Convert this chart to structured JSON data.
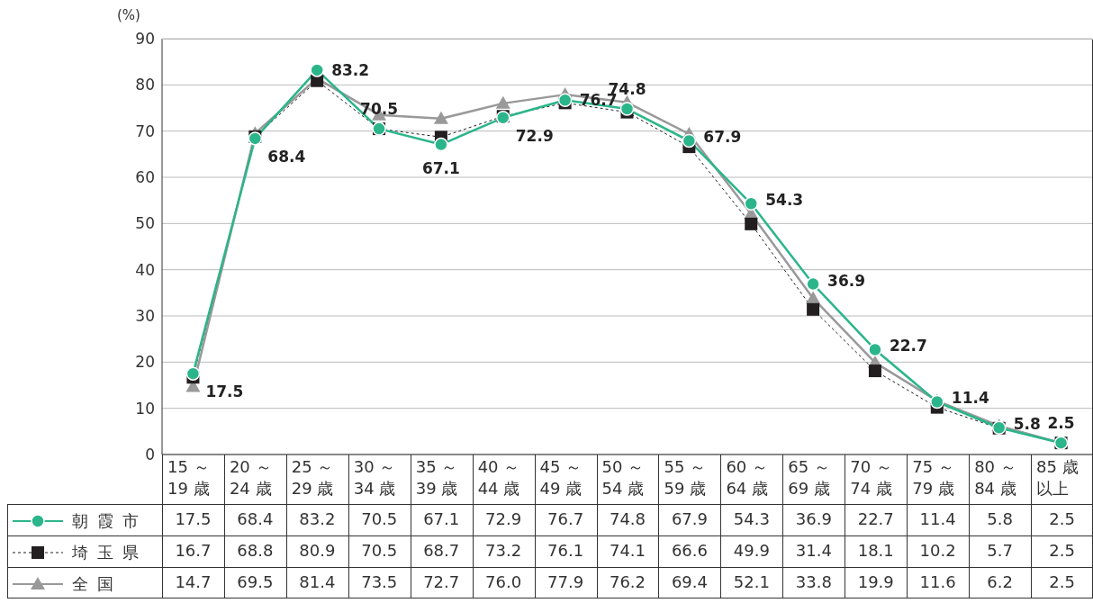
{
  "chart_data": {
    "type": "line",
    "ylabel": "(%)",
    "categories": [
      "15 ～\n19 歳",
      "20 ～\n24 歳",
      "25 ～\n29 歳",
      "30 ～\n34 歳",
      "35 ～\n39 歳",
      "40 ～\n44 歳",
      "45 ～\n49 歳",
      "50 ～\n54 歳",
      "55 ～\n59 歳",
      "60 ～\n64 歳",
      "65 ～\n69 歳",
      "70 ～\n74 歳",
      "75 ～\n79 歳",
      "80 ～\n84 歳",
      "85 歳以上"
    ],
    "series": [
      {
        "name": "朝霞市",
        "color": "#2bb58a",
        "marker": "circle",
        "line_style": "solid",
        "values": [
          17.5,
          68.4,
          83.2,
          70.5,
          67.1,
          72.9,
          76.7,
          74.8,
          67.9,
          54.3,
          36.9,
          22.7,
          11.4,
          5.8,
          2.5
        ],
        "value_labels": [
          "17.5",
          "68.4",
          "83.2",
          "70.5",
          "67.1",
          "72.9",
          "76.7",
          "74.8",
          "67.9",
          "54.3",
          "36.9",
          "22.7",
          "11.4",
          "5.8",
          "2.5"
        ]
      },
      {
        "name": "埼玉県",
        "color": "#231f20",
        "marker": "square",
        "line_style": "dotted",
        "values": [
          16.7,
          68.8,
          80.9,
          70.5,
          68.7,
          73.2,
          76.1,
          74.1,
          66.6,
          49.9,
          31.4,
          18.1,
          10.2,
          5.7,
          2.5
        ],
        "value_labels": [
          "16.7",
          "68.8",
          "80.9",
          "70.5",
          "68.7",
          "73.2",
          "76.1",
          "74.1",
          "66.6",
          "49.9",
          "31.4",
          "18.1",
          "10.2",
          "5.7",
          "2.5"
        ]
      },
      {
        "name": "全国",
        "color": "#999999",
        "marker": "triangle",
        "line_style": "solid",
        "values": [
          14.7,
          69.5,
          81.4,
          73.5,
          72.7,
          76.0,
          77.9,
          76.2,
          69.4,
          52.1,
          33.8,
          19.9,
          11.6,
          6.2,
          2.5
        ],
        "value_labels": [
          "14.7",
          "69.5",
          "81.4",
          "73.5",
          "72.7",
          "76.0",
          "77.9",
          "76.2",
          "69.4",
          "52.1",
          "33.8",
          "19.9",
          "11.6",
          "6.2",
          "2.5"
        ]
      }
    ],
    "ylim": [
      0,
      90
    ],
    "yticks": [
      0,
      10,
      20,
      30,
      40,
      50,
      60,
      70,
      80,
      90
    ],
    "grid": "y",
    "legend": "bottom left"
  }
}
